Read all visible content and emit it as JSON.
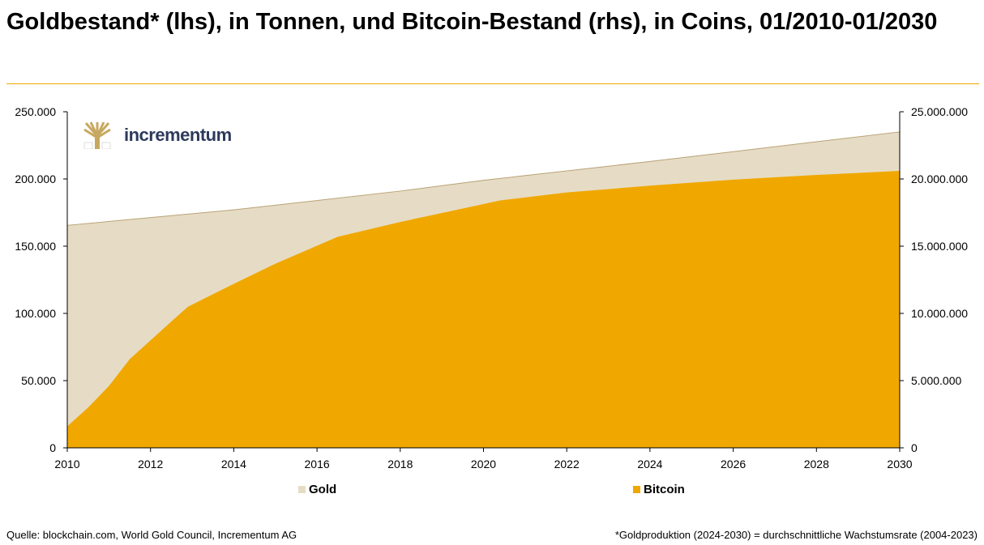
{
  "title": "Goldbestand* (lhs), in Tonnen, und Bitcoin-Bestand (rhs), in Coins, 01/2010-01/2030",
  "logo_text": "incrementum",
  "source": "Quelle: blockchain.com, World Gold Council, Incrementum AG",
  "footnote": "*Goldproduktion (2024-2030) = durchschnittliche Wachstumsrate (2004-2023)",
  "colors": {
    "gold": "#e6dcc5",
    "gold_line": "#b8a275",
    "bitcoin": "#f0a800",
    "accent": "#f0a800"
  },
  "chart_data": {
    "type": "area",
    "xlim": [
      2010,
      2030
    ],
    "x_ticks": [
      "2010",
      "2012",
      "2014",
      "2016",
      "2018",
      "2020",
      "2022",
      "2024",
      "2026",
      "2028",
      "2030"
    ],
    "y_left": {
      "lim": [
        0,
        250000
      ],
      "ticks": [
        "0",
        "50.000",
        "100.000",
        "150.000",
        "200.000",
        "250.000"
      ]
    },
    "y_right": {
      "lim": [
        0,
        25000000
      ],
      "ticks": [
        "0",
        "5.000.000",
        "10.000.000",
        "15.000.000",
        "20.000.000",
        "25.000.000"
      ]
    },
    "grid": false,
    "legend": "bottom",
    "series": [
      {
        "name": "Gold",
        "axis": "left",
        "x": [
          2010,
          2014,
          2018,
          2020,
          2024,
          2030
        ],
        "values": [
          165500,
          177000,
          191000,
          199000,
          213000,
          235000
        ]
      },
      {
        "name": "Bitcoin",
        "axis": "right",
        "x": [
          2010,
          2010.5,
          2011,
          2011.5,
          2012,
          2012.5,
          2012.9,
          2014,
          2015,
          2016.5,
          2018,
          2020.4,
          2022,
          2024,
          2026,
          2028,
          2030
        ],
        "values": [
          1600000,
          3000000,
          4600000,
          6600000,
          8000000,
          9400000,
          10500000,
          12200000,
          13700000,
          15700000,
          16800000,
          18400000,
          19000000,
          19500000,
          19950000,
          20300000,
          20600000
        ]
      }
    ]
  }
}
